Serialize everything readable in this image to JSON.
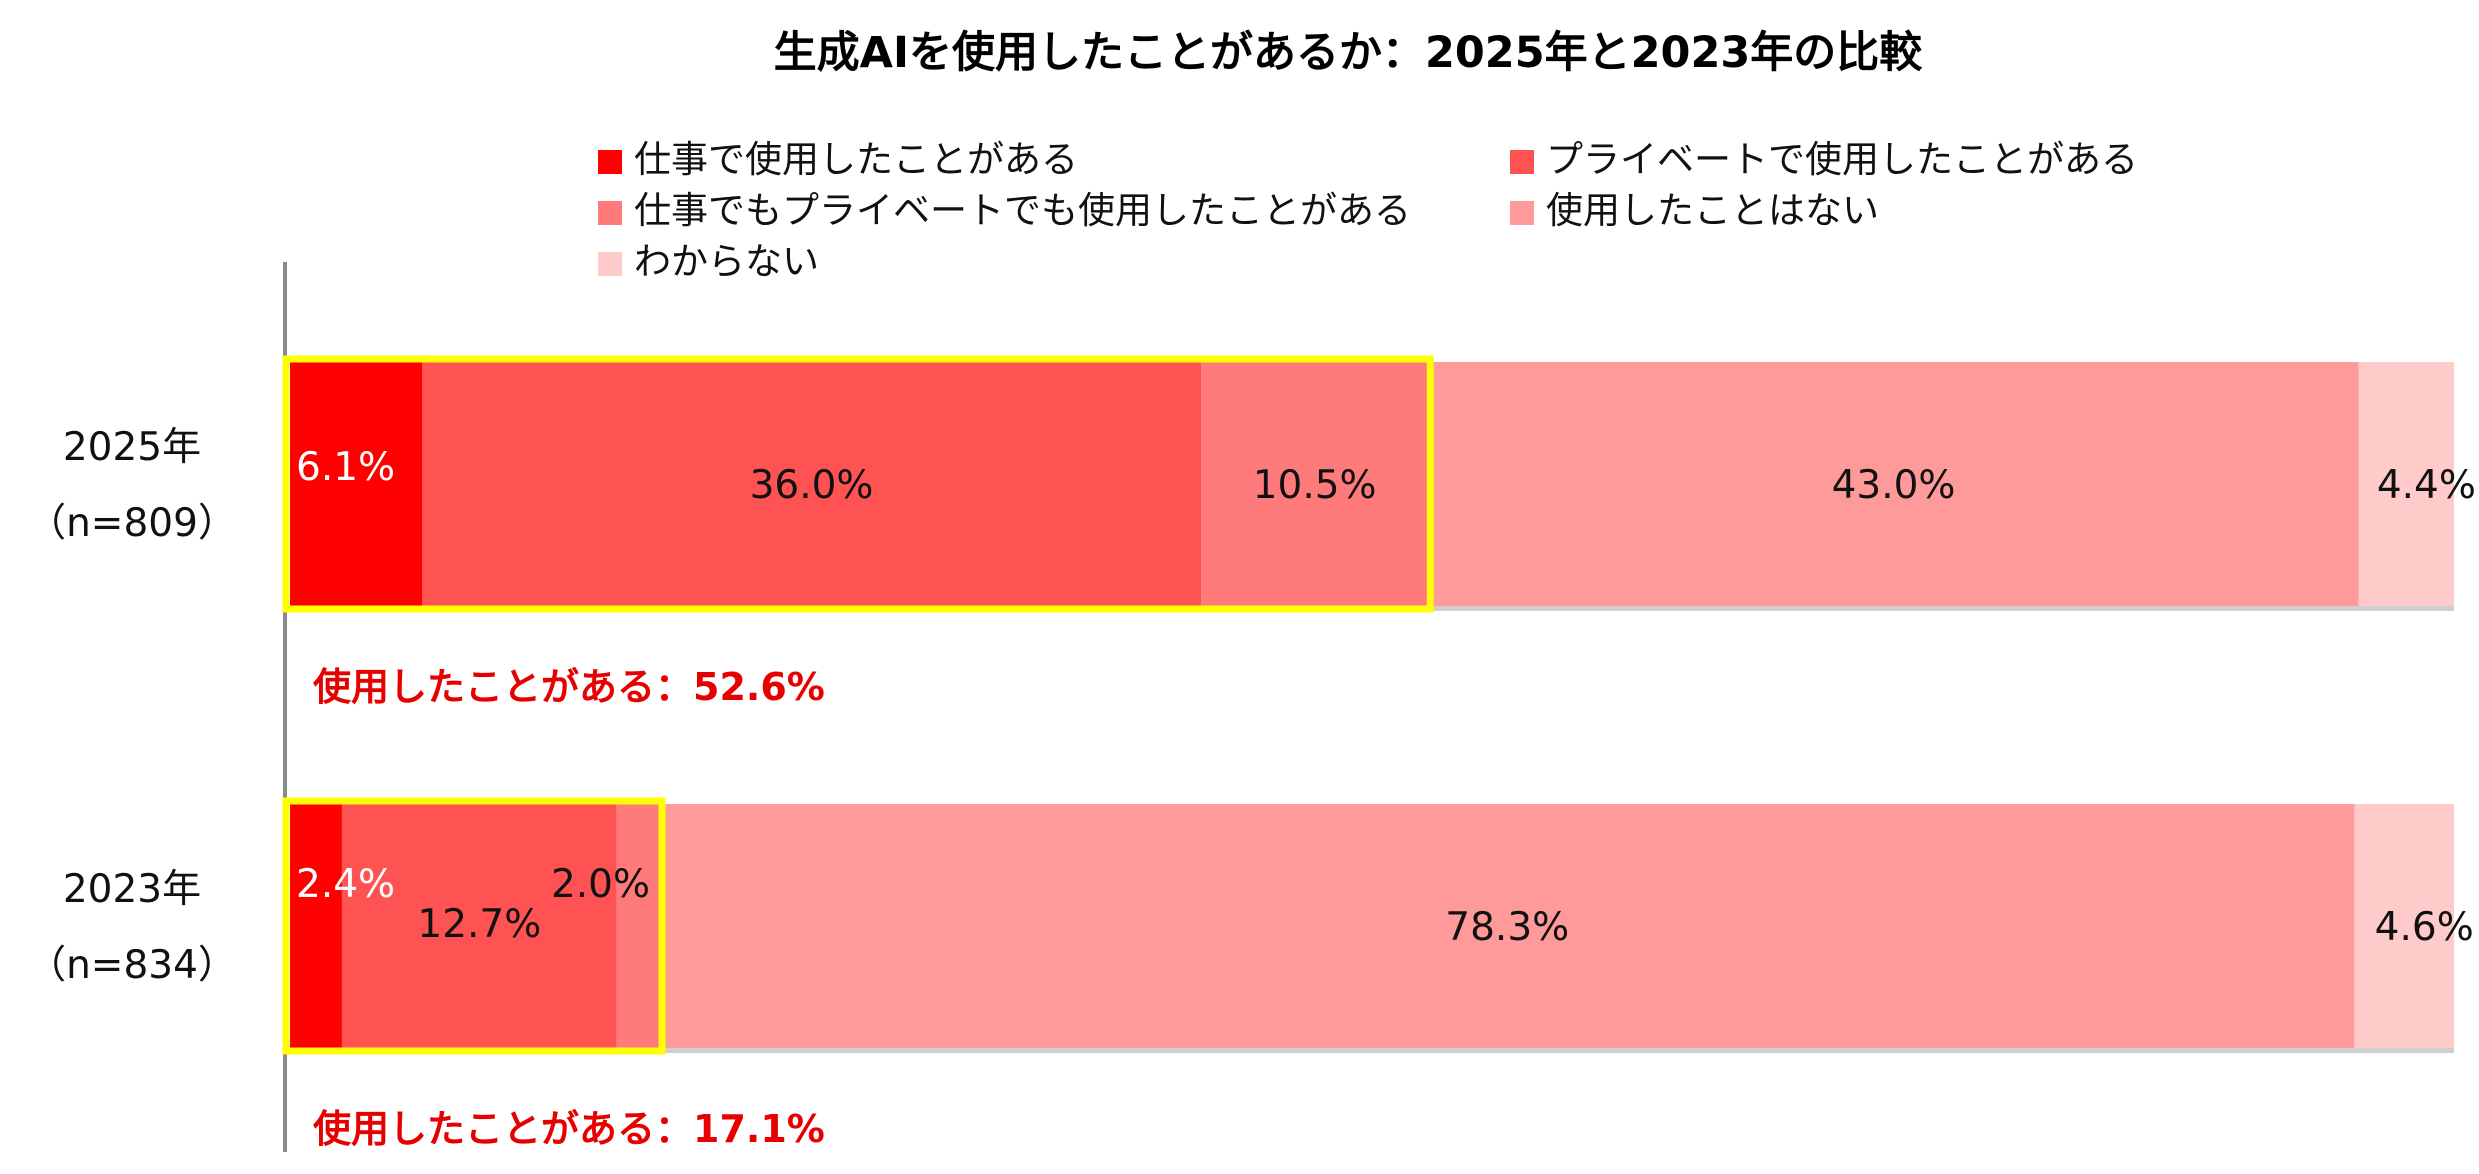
{
  "chart_data": {
    "type": "bar",
    "orientation": "horizontal",
    "stacked": true,
    "title": "生成AIを使用したことがあるか：2025年と2023年の比較",
    "categories": [
      {
        "label": "2025年",
        "sublabel": "（n=809）"
      },
      {
        "label": "2023年",
        "sublabel": "（n=834）"
      }
    ],
    "series": [
      {
        "name": "仕事で使用したことがある",
        "color": "#ff0000",
        "label_color": "#ffffff",
        "values": [
          6.1,
          2.4
        ],
        "value_labels": [
          "6.1%",
          "2.4%"
        ]
      },
      {
        "name": "プライベートで使用したことがある",
        "color": "#ff5252",
        "label_color": "#111111",
        "values": [
          36.0,
          12.7
        ],
        "value_labels": [
          "36.0%",
          "12.7%"
        ]
      },
      {
        "name": "仕事でもプライベートでも使用したことがある",
        "color": "#ff7b7b",
        "label_color": "#111111",
        "values": [
          10.5,
          2.0
        ],
        "value_labels": [
          "10.5%",
          "2.0%"
        ]
      },
      {
        "name": "使用したことはない",
        "color": "#ff9a9a",
        "label_color": "#111111",
        "values": [
          43.0,
          78.3
        ],
        "value_labels": [
          "43.0%",
          "78.3%"
        ]
      },
      {
        "name": "わからない",
        "color": "#ffcaca",
        "label_color": "#111111",
        "values": [
          4.4,
          4.6
        ],
        "value_labels": [
          "4.4%",
          "4.6%"
        ]
      }
    ],
    "highlight_color": "#ffff00",
    "summaries": [
      "使用したことがある：52.6%",
      "使用したことがある：17.1%"
    ],
    "summary_color": "#e60000",
    "xlim": [
      0,
      100
    ],
    "legend_position": "top"
  }
}
